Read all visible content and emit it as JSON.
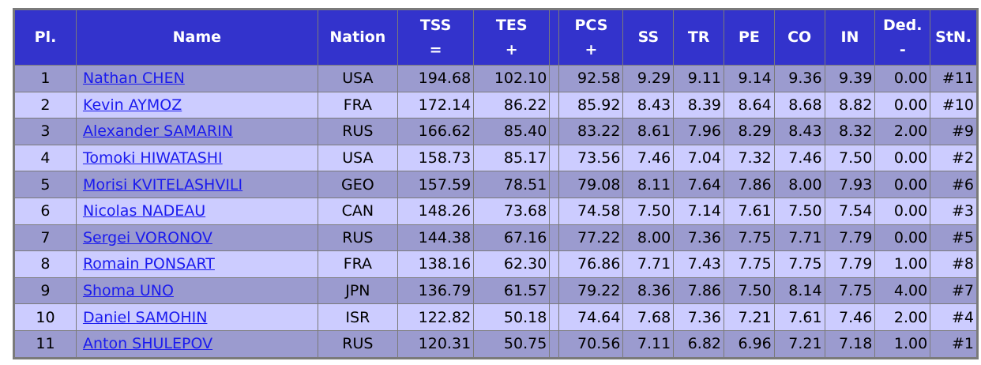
{
  "headers": {
    "pl": "Pl.",
    "name": "Name",
    "nation": "Nation",
    "tss": [
      "TSS",
      "="
    ],
    "tes": [
      "TES",
      "+"
    ],
    "pcs": [
      "PCS",
      "+"
    ],
    "ss": "SS",
    "tr": "TR",
    "pe": "PE",
    "co": "CO",
    "in": "IN",
    "ded": [
      "Ded.",
      "-"
    ],
    "stn": "StN."
  },
  "rows": [
    {
      "pl": "1",
      "name": "Nathan CHEN",
      "nation": "USA",
      "tss": "194.68",
      "tes": "102.10",
      "pcs": "92.58",
      "ss": "9.29",
      "tr": "9.11",
      "pe": "9.14",
      "co": "9.36",
      "in": "9.39",
      "ded": "0.00",
      "stn": "#11"
    },
    {
      "pl": "2",
      "name": "Kevin AYMOZ",
      "nation": "FRA",
      "tss": "172.14",
      "tes": "86.22",
      "pcs": "85.92",
      "ss": "8.43",
      "tr": "8.39",
      "pe": "8.64",
      "co": "8.68",
      "in": "8.82",
      "ded": "0.00",
      "stn": "#10"
    },
    {
      "pl": "3",
      "name": "Alexander SAMARIN",
      "nation": "RUS",
      "tss": "166.62",
      "tes": "85.40",
      "pcs": "83.22",
      "ss": "8.61",
      "tr": "7.96",
      "pe": "8.29",
      "co": "8.43",
      "in": "8.32",
      "ded": "2.00",
      "stn": "#9"
    },
    {
      "pl": "4",
      "name": "Tomoki HIWATASHI",
      "nation": "USA",
      "tss": "158.73",
      "tes": "85.17",
      "pcs": "73.56",
      "ss": "7.46",
      "tr": "7.04",
      "pe": "7.32",
      "co": "7.46",
      "in": "7.50",
      "ded": "0.00",
      "stn": "#2"
    },
    {
      "pl": "5",
      "name": "Morisi KVITELASHVILI",
      "nation": "GEO",
      "tss": "157.59",
      "tes": "78.51",
      "pcs": "79.08",
      "ss": "8.11",
      "tr": "7.64",
      "pe": "7.86",
      "co": "8.00",
      "in": "7.93",
      "ded": "0.00",
      "stn": "#6"
    },
    {
      "pl": "6",
      "name": "Nicolas NADEAU",
      "nation": "CAN",
      "tss": "148.26",
      "tes": "73.68",
      "pcs": "74.58",
      "ss": "7.50",
      "tr": "7.14",
      "pe": "7.61",
      "co": "7.50",
      "in": "7.54",
      "ded": "0.00",
      "stn": "#3"
    },
    {
      "pl": "7",
      "name": "Sergei VORONOV",
      "nation": "RUS",
      "tss": "144.38",
      "tes": "67.16",
      "pcs": "77.22",
      "ss": "8.00",
      "tr": "7.36",
      "pe": "7.75",
      "co": "7.71",
      "in": "7.79",
      "ded": "0.00",
      "stn": "#5"
    },
    {
      "pl": "8",
      "name": "Romain PONSART",
      "nation": "FRA",
      "tss": "138.16",
      "tes": "62.30",
      "pcs": "76.86",
      "ss": "7.71",
      "tr": "7.43",
      "pe": "7.75",
      "co": "7.75",
      "in": "7.79",
      "ded": "1.00",
      "stn": "#8"
    },
    {
      "pl": "9",
      "name": "Shoma UNO",
      "nation": "JPN",
      "tss": "136.79",
      "tes": "61.57",
      "pcs": "79.22",
      "ss": "8.36",
      "tr": "7.86",
      "pe": "7.50",
      "co": "8.14",
      "in": "7.75",
      "ded": "4.00",
      "stn": "#7"
    },
    {
      "pl": "10",
      "name": "Daniel SAMOHIN",
      "nation": "ISR",
      "tss": "122.82",
      "tes": "50.18",
      "pcs": "74.64",
      "ss": "7.68",
      "tr": "7.36",
      "pe": "7.21",
      "co": "7.61",
      "in": "7.46",
      "ded": "2.00",
      "stn": "#4"
    },
    {
      "pl": "11",
      "name": "Anton SHULEPOV",
      "nation": "RUS",
      "tss": "120.31",
      "tes": "50.75",
      "pcs": "70.56",
      "ss": "7.11",
      "tr": "6.82",
      "pe": "6.96",
      "co": "7.21",
      "in": "7.18",
      "ded": "1.00",
      "stn": "#1"
    }
  ],
  "colors": {
    "header_bg": "#3333cc",
    "row_odd": "#9b9bcf",
    "row_even": "#ccccff",
    "link": "#1a1aee"
  }
}
